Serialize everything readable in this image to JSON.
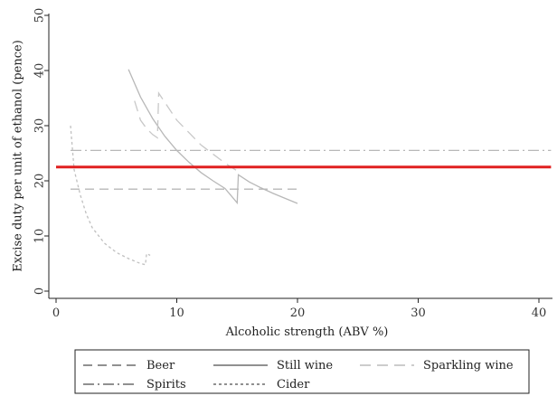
{
  "chart_data": {
    "type": "line",
    "title": "",
    "xlabel": "Alcoholic strength (ABV %)",
    "ylabel": "Excise duty per unit of ethanol (pence)",
    "xlim": [
      0,
      41
    ],
    "ylim": [
      0,
      50
    ],
    "xticks": [
      "0",
      "10",
      "20",
      "30",
      "40"
    ],
    "yticks": [
      "0",
      "10",
      "20",
      "30",
      "40",
      "50"
    ],
    "grid": false,
    "legend_position": "bottom",
    "series": [
      {
        "name": "Beer",
        "style": "dash",
        "color": "#b8b8b8",
        "points": [
          [
            1.2,
            18.5
          ],
          [
            20,
            18.5
          ]
        ]
      },
      {
        "name": "Still wine",
        "style": "solid",
        "color": "#b8b8b8",
        "points": [
          [
            6,
            40.2
          ],
          [
            7,
            35.2
          ],
          [
            8,
            31.3
          ],
          [
            9,
            28.1
          ],
          [
            10,
            25.5
          ],
          [
            11,
            23.4
          ],
          [
            12,
            21.5
          ],
          [
            13,
            20.0
          ],
          [
            14,
            18.6
          ],
          [
            15,
            16.0
          ],
          [
            15.1,
            21.1
          ],
          [
            16,
            19.8
          ],
          [
            17,
            18.7
          ],
          [
            18,
            17.7
          ],
          [
            19,
            16.8
          ],
          [
            20,
            15.9
          ]
        ]
      },
      {
        "name": "Sparkling wine",
        "style": "longdash",
        "color": "#c8c8c8",
        "points": [
          [
            6.5,
            34.5
          ],
          [
            7,
            31.0
          ],
          [
            7.5,
            29.5
          ],
          [
            8.0,
            28.4
          ],
          [
            8.4,
            27.8
          ],
          [
            8.5,
            35.9
          ],
          [
            10,
            31.0
          ],
          [
            12,
            26.5
          ],
          [
            14,
            23.2
          ],
          [
            15,
            21.8
          ]
        ]
      },
      {
        "name": "Spirits",
        "style": "dashdot",
        "color": "#b8b8b8",
        "points": [
          [
            1.2,
            25.5
          ],
          [
            41,
            25.5
          ]
        ]
      },
      {
        "name": "Cider",
        "style": "shortdash",
        "color": "#c0c0c0",
        "points": [
          [
            1.2,
            30.0
          ],
          [
            1.5,
            22.0
          ],
          [
            2,
            17.5
          ],
          [
            2.5,
            14.0
          ],
          [
            3,
            11.5
          ],
          [
            4,
            8.7
          ],
          [
            5,
            7.0
          ],
          [
            6,
            5.9
          ],
          [
            7,
            5.0
          ],
          [
            7.4,
            4.8
          ],
          [
            7.5,
            6.8
          ],
          [
            7.8,
            6.5
          ]
        ]
      },
      {
        "name": "",
        "style": "solid",
        "color": "#e02020",
        "width": 3,
        "points": [
          [
            0,
            22.5
          ],
          [
            41,
            22.5
          ]
        ]
      }
    ]
  }
}
